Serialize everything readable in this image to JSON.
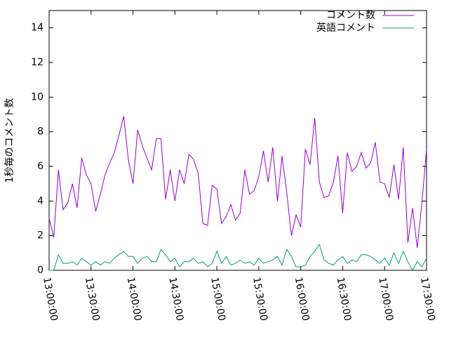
{
  "chart_data": {
    "type": "line",
    "ylabel": "1秒毎のコメント数",
    "x": [
      "13:00:00",
      "13:03:20",
      "13:06:40",
      "13:10:00",
      "13:13:20",
      "13:16:40",
      "13:20:00",
      "13:23:20",
      "13:26:40",
      "13:30:00",
      "13:33:20",
      "13:36:40",
      "13:40:00",
      "13:43:20",
      "13:46:40",
      "13:50:00",
      "13:53:20",
      "13:56:40",
      "14:00:00",
      "14:03:20",
      "14:06:40",
      "14:10:00",
      "14:13:20",
      "14:16:40",
      "14:20:00",
      "14:23:20",
      "14:26:40",
      "14:30:00",
      "14:33:20",
      "14:36:40",
      "14:40:00",
      "14:43:20",
      "14:46:40",
      "14:50:00",
      "14:53:20",
      "14:56:40",
      "15:00:00",
      "15:03:20",
      "15:06:40",
      "15:10:00",
      "15:13:20",
      "15:16:40",
      "15:20:00",
      "15:23:20",
      "15:26:40",
      "15:30:00",
      "15:33:20",
      "15:36:40",
      "15:40:00",
      "15:43:20",
      "15:46:40",
      "15:50:00",
      "15:53:20",
      "15:56:40",
      "16:00:00",
      "16:03:20",
      "16:06:40",
      "16:10:00",
      "16:13:20",
      "16:16:40",
      "16:20:00",
      "16:23:20",
      "16:26:40",
      "16:30:00",
      "16:33:20",
      "16:36:40",
      "16:40:00",
      "16:43:20",
      "16:46:40",
      "16:50:00",
      "16:53:20",
      "16:56:40",
      "17:00:00",
      "17:03:20",
      "17:06:40",
      "17:10:00",
      "17:13:20",
      "17:16:40",
      "17:20:00",
      "17:23:20",
      "17:26:40",
      "17:30:00"
    ],
    "series": [
      {
        "name": "コメント数",
        "color": "#9400d3",
        "values": [
          3.0,
          1.9,
          5.8,
          3.5,
          3.9,
          5.0,
          3.6,
          6.5,
          5.5,
          5.0,
          3.4,
          4.4,
          5.5,
          6.2,
          6.8,
          7.8,
          8.9,
          6.4,
          5.0,
          8.1,
          7.2,
          6.5,
          5.8,
          7.6,
          7.6,
          4.1,
          5.8,
          4.0,
          5.8,
          5.0,
          6.7,
          6.4,
          5.6,
          2.7,
          2.6,
          4.9,
          4.7,
          2.7,
          3.1,
          3.8,
          2.9,
          3.3,
          5.8,
          4.4,
          4.6,
          5.4,
          6.9,
          5.1,
          7.1,
          4.0,
          6.6,
          4.5,
          2.0,
          3.2,
          2.5,
          7.0,
          6.1,
          8.8,
          5.1,
          4.2,
          4.3,
          5.1,
          6.6,
          3.3,
          6.8,
          5.7,
          6.0,
          6.8,
          5.9,
          6.2,
          7.4,
          5.1,
          5.0,
          4.2,
          6.1,
          4.1,
          7.1,
          1.6,
          3.6,
          1.3,
          3.9,
          7.0
        ]
      },
      {
        "name": "英語コメント",
        "color": "#009e73",
        "values": [
          0,
          0,
          0.9,
          0.4,
          0.4,
          0.5,
          0.3,
          0.7,
          0.5,
          0.3,
          0.5,
          0.3,
          0.5,
          0.4,
          0.7,
          0.9,
          1.1,
          0.8,
          0.8,
          0.4,
          0.7,
          0.8,
          0.5,
          0.5,
          1.2,
          0.9,
          0.5,
          0.7,
          0.2,
          0.5,
          0.5,
          0.7,
          0.4,
          0.5,
          0.2,
          0.4,
          1.1,
          0.4,
          0.8,
          0.3,
          0.4,
          0.6,
          0.4,
          0.5,
          0.3,
          0.7,
          0.4,
          0.5,
          0.6,
          0.8,
          0.3,
          1.2,
          0.8,
          0.2,
          0.2,
          0.3,
          0.8,
          1.1,
          1.5,
          0.6,
          0.4,
          0.3,
          0.6,
          0.8,
          0.4,
          0.6,
          0.5,
          0.9,
          0.9,
          0.8,
          0.6,
          0.4,
          0.7,
          0.3,
          1.0,
          0.4,
          1.1,
          0.5,
          0,
          0.5,
          0.2,
          0.7
        ]
      }
    ],
    "xlim": [
      "13:00:00",
      "17:30:00"
    ],
    "xticks": [
      "13:00:00",
      "13:30:00",
      "14:00:00",
      "14:30:00",
      "15:00:00",
      "15:30:00",
      "16:00:00",
      "16:30:00",
      "17:00:00",
      "17:30:00"
    ],
    "ylim": [
      0,
      15
    ],
    "yticks": [
      0,
      2,
      4,
      6,
      8,
      10,
      12,
      14
    ],
    "legend": "top-right"
  }
}
